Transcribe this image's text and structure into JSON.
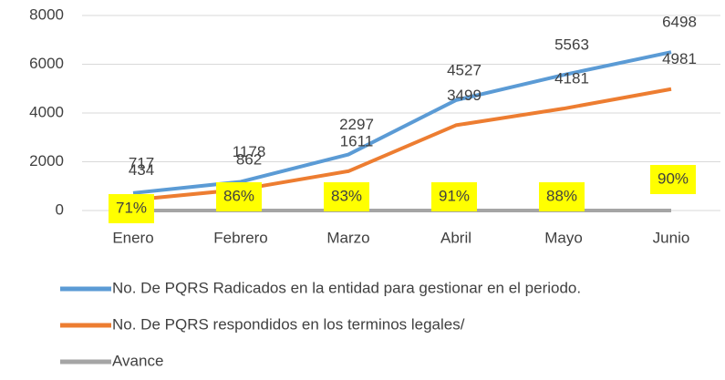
{
  "chart_data": {
    "type": "line",
    "categories": [
      "Enero",
      "Febrero",
      "Marzo",
      "Abril",
      "Mayo",
      "Junio"
    ],
    "series": [
      {
        "name": "No. De PQRS Radicados en la entidad para gestionar en el periodo.",
        "color": "#5b9bd5",
        "values": [
          717,
          1178,
          2297,
          4527,
          5563,
          6498
        ]
      },
      {
        "name": "No. De PQRS  respondidos en los terminos legales/",
        "color": "#ed7d31",
        "values": [
          434,
          862,
          1611,
          3499,
          4181,
          4981
        ]
      },
      {
        "name": "Avance",
        "color": "#a5a5a5",
        "values": [
          0.71,
          0.86,
          0.83,
          0.91,
          0.88,
          0.9
        ],
        "value_labels": [
          "71%",
          "86%",
          "83%",
          "91%",
          "88%",
          "90%"
        ]
      }
    ],
    "ylim": [
      0,
      8000
    ],
    "yticks": [
      0,
      2000,
      4000,
      6000,
      8000
    ],
    "grid": true,
    "legend": "bottom"
  }
}
